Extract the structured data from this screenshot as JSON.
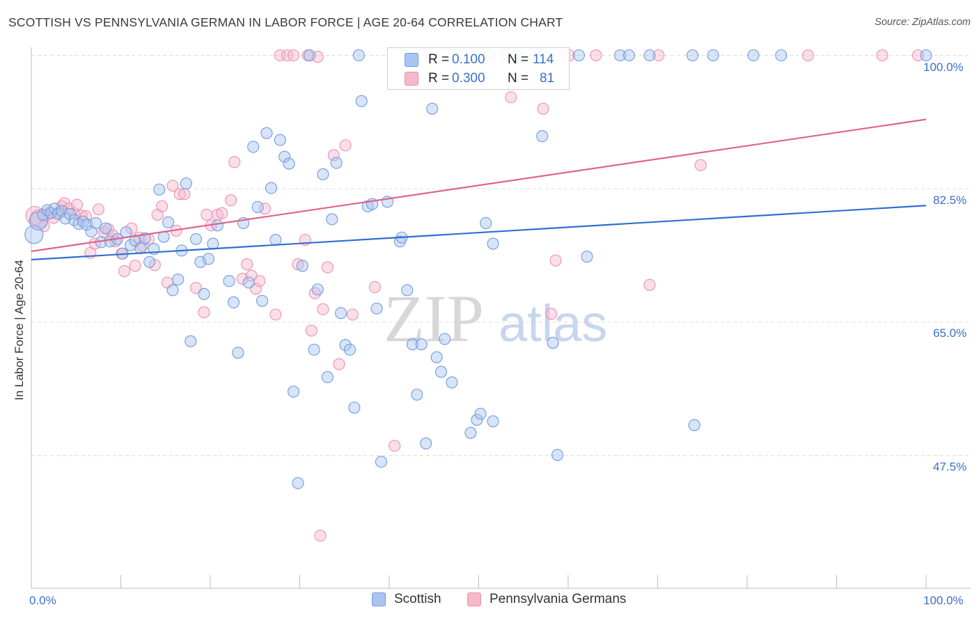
{
  "header": {
    "title": "SCOTTISH VS PENNSYLVANIA GERMAN IN LABOR FORCE | AGE 20-64 CORRELATION CHART",
    "source": "Source: ZipAtlas.com"
  },
  "legend": {
    "rows": [
      {
        "r_label": "R =",
        "r_value": "0.100",
        "n_label": "N =",
        "n_value": "114"
      },
      {
        "r_label": "R =",
        "r_value": "0.300",
        "n_label": "N =",
        "n_value": "81"
      }
    ]
  },
  "bottom_legend": {
    "items": [
      "Scottish",
      "Pennsylvania Germans"
    ]
  },
  "watermark": {
    "zip": "ZIP",
    "atlas": "atlas"
  },
  "axes": {
    "y_title": "In Labor Force | Age 20-64",
    "x_min_label": "0.0%",
    "x_max_label": "100.0%",
    "y_tick_labels": [
      "100.0%",
      "82.5%",
      "65.0%",
      "47.5%"
    ]
  },
  "colors": {
    "blue_fill": "#a9c4ee",
    "blue_stroke": "#6f9be0",
    "blue_line": "#2f6fd1",
    "pink_fill": "#f6b8cb",
    "pink_stroke": "#ec8faf",
    "pink_line": "#e0628d",
    "accent_text": "#3b6fc9"
  },
  "chart_data": {
    "type": "scatter",
    "title": "SCOTTISH VS PENNSYLVANIA GERMAN IN LABOR FORCE | AGE 20-64 CORRELATION CHART",
    "xlabel": "",
    "ylabel": "In Labor Force | Age 20-64",
    "xlim": [
      0,
      100
    ],
    "ylim": [
      29.5,
      101.5
    ],
    "y_ticks": [
      100.0,
      82.5,
      65.0,
      47.5
    ],
    "grid": true,
    "legend_position": "top-center",
    "series": [
      {
        "name": "Scottish",
        "r": 0.1,
        "n": 114,
        "trend": {
          "x": [
            0,
            100
          ],
          "y": [
            73.2,
            80.3
          ]
        },
        "points": [
          [
            0.3,
            76.5
          ],
          [
            0.8,
            78.3
          ],
          [
            1.3,
            79.1
          ],
          [
            1.8,
            79.7
          ],
          [
            2.2,
            79.3
          ],
          [
            2.6,
            79.9
          ],
          [
            3.0,
            79.2
          ],
          [
            3.4,
            79.6
          ],
          [
            3.8,
            78.6
          ],
          [
            4.3,
            79.2
          ],
          [
            4.8,
            78.4
          ],
          [
            5.3,
            77.9
          ],
          [
            5.8,
            78.2
          ],
          [
            6.2,
            77.8
          ],
          [
            6.7,
            76.9
          ],
          [
            7.2,
            78.0
          ],
          [
            7.8,
            75.5
          ],
          [
            8.3,
            77.3
          ],
          [
            8.8,
            75.6
          ],
          [
            9.6,
            75.9
          ],
          [
            10.2,
            74.0
          ],
          [
            10.6,
            76.8
          ],
          [
            11.1,
            75.1
          ],
          [
            11.6,
            75.7
          ],
          [
            12.2,
            74.7
          ],
          [
            12.7,
            76.0
          ],
          [
            13.2,
            72.9
          ],
          [
            13.7,
            74.6
          ],
          [
            14.3,
            82.4
          ],
          [
            14.8,
            76.2
          ],
          [
            15.3,
            78.1
          ],
          [
            15.8,
            69.2
          ],
          [
            16.4,
            70.6
          ],
          [
            16.8,
            74.4
          ],
          [
            17.3,
            83.2
          ],
          [
            17.8,
            62.5
          ],
          [
            18.4,
            75.9
          ],
          [
            18.9,
            72.9
          ],
          [
            19.3,
            68.7
          ],
          [
            19.8,
            73.3
          ],
          [
            20.3,
            75.3
          ],
          [
            20.8,
            77.7
          ],
          [
            22.1,
            70.4
          ],
          [
            22.6,
            67.6
          ],
          [
            23.1,
            61.0
          ],
          [
            23.7,
            78.0
          ],
          [
            24.3,
            70.2
          ],
          [
            24.8,
            88.0
          ],
          [
            25.3,
            80.1
          ],
          [
            25.8,
            67.8
          ],
          [
            26.3,
            89.8
          ],
          [
            26.8,
            82.6
          ],
          [
            27.3,
            75.8
          ],
          [
            27.8,
            88.9
          ],
          [
            28.3,
            86.7
          ],
          [
            28.8,
            85.8
          ],
          [
            29.3,
            55.9
          ],
          [
            29.8,
            43.9
          ],
          [
            30.3,
            72.4
          ],
          [
            31.1,
            100.0
          ],
          [
            31.6,
            61.4
          ],
          [
            32.0,
            69.3
          ],
          [
            32.6,
            84.4
          ],
          [
            33.1,
            57.8
          ],
          [
            33.6,
            78.5
          ],
          [
            34.1,
            85.9
          ],
          [
            34.6,
            66.2
          ],
          [
            35.1,
            62.0
          ],
          [
            35.6,
            61.4
          ],
          [
            36.1,
            53.8
          ],
          [
            36.6,
            100.0
          ],
          [
            36.9,
            94.0
          ],
          [
            37.6,
            80.2
          ],
          [
            38.1,
            80.5
          ],
          [
            38.6,
            66.8
          ],
          [
            39.1,
            46.7
          ],
          [
            39.8,
            80.8
          ],
          [
            41.2,
            75.6
          ],
          [
            41.4,
            76.1
          ],
          [
            42.0,
            69.2
          ],
          [
            42.6,
            62.1
          ],
          [
            43.1,
            55.5
          ],
          [
            43.6,
            62.1
          ],
          [
            44.1,
            49.1
          ],
          [
            44.8,
            93.0
          ],
          [
            45.3,
            60.4
          ],
          [
            45.8,
            58.5
          ],
          [
            46.2,
            62.8
          ],
          [
            47.0,
            57.1
          ],
          [
            49.1,
            50.5
          ],
          [
            49.8,
            52.2
          ],
          [
            50.2,
            53.0
          ],
          [
            51.2,
            100.0
          ],
          [
            51.6,
            52.0
          ],
          [
            50.8,
            78.0
          ],
          [
            51.6,
            75.3
          ],
          [
            54.2,
            100.0
          ],
          [
            57.1,
            89.4
          ],
          [
            57.2,
            100.0
          ],
          [
            58.8,
            47.6
          ],
          [
            58.3,
            62.3
          ],
          [
            61.2,
            100.0
          ],
          [
            62.1,
            73.6
          ],
          [
            65.8,
            100.0
          ],
          [
            66.8,
            100.0
          ],
          [
            69.1,
            100.0
          ],
          [
            73.9,
            100.0
          ],
          [
            74.1,
            51.5
          ],
          [
            76.2,
            100.0
          ],
          [
            80.7,
            100.0
          ],
          [
            83.8,
            100.0
          ],
          [
            100.0,
            100.0
          ]
        ]
      },
      {
        "name": "Pennsylvania Germans",
        "r": 0.3,
        "n": 81,
        "trend": {
          "x": [
            0,
            100
          ],
          "y": [
            74.3,
            91.6
          ]
        },
        "points": [
          [
            0.4,
            79.0
          ],
          [
            0.9,
            78.6
          ],
          [
            1.4,
            77.6
          ],
          [
            2.0,
            79.4
          ],
          [
            2.5,
            78.7
          ],
          [
            3.1,
            79.4
          ],
          [
            3.4,
            80.2
          ],
          [
            3.7,
            80.6
          ],
          [
            4.2,
            79.9
          ],
          [
            4.8,
            79.3
          ],
          [
            5.1,
            80.4
          ],
          [
            5.6,
            79.0
          ],
          [
            6.1,
            78.9
          ],
          [
            6.6,
            74.1
          ],
          [
            7.1,
            75.3
          ],
          [
            7.5,
            79.8
          ],
          [
            8.1,
            76.8
          ],
          [
            8.6,
            77.2
          ],
          [
            9.1,
            76.4
          ],
          [
            9.4,
            75.6
          ],
          [
            10.1,
            74.0
          ],
          [
            10.4,
            71.7
          ],
          [
            11.2,
            77.3
          ],
          [
            11.6,
            72.4
          ],
          [
            12.1,
            76.1
          ],
          [
            12.4,
            75.0
          ],
          [
            13.1,
            75.9
          ],
          [
            13.8,
            72.5
          ],
          [
            14.1,
            79.1
          ],
          [
            14.6,
            80.2
          ],
          [
            15.2,
            70.2
          ],
          [
            15.8,
            82.9
          ],
          [
            16.2,
            77.0
          ],
          [
            16.6,
            81.8
          ],
          [
            17.1,
            81.8
          ],
          [
            18.4,
            69.5
          ],
          [
            19.3,
            66.3
          ],
          [
            19.6,
            79.1
          ],
          [
            20.1,
            77.7
          ],
          [
            20.8,
            79.1
          ],
          [
            21.3,
            79.3
          ],
          [
            22.3,
            81.0
          ],
          [
            22.7,
            86.0
          ],
          [
            23.6,
            70.7
          ],
          [
            24.1,
            72.6
          ],
          [
            24.6,
            71.1
          ],
          [
            25.1,
            69.4
          ],
          [
            25.5,
            70.4
          ],
          [
            26.1,
            79.9
          ],
          [
            27.3,
            66.0
          ],
          [
            27.8,
            100.0
          ],
          [
            28.6,
            100.0
          ],
          [
            29.8,
            72.6
          ],
          [
            29.3,
            100.0
          ],
          [
            30.6,
            75.8
          ],
          [
            30.9,
            100.0
          ],
          [
            31.3,
            63.9
          ],
          [
            31.7,
            68.8
          ],
          [
            32.0,
            99.8
          ],
          [
            32.3,
            37.0
          ],
          [
            32.6,
            66.7
          ],
          [
            33.1,
            72.2
          ],
          [
            33.8,
            86.9
          ],
          [
            34.4,
            59.5
          ],
          [
            35.1,
            88.2
          ],
          [
            35.9,
            66.0
          ],
          [
            38.4,
            69.6
          ],
          [
            40.6,
            48.8
          ],
          [
            53.1,
            100.0
          ],
          [
            53.6,
            94.5
          ],
          [
            57.2,
            93.0
          ],
          [
            58.1,
            66.1
          ],
          [
            58.6,
            73.1
          ],
          [
            60.1,
            100.0
          ],
          [
            63.1,
            100.0
          ],
          [
            69.1,
            69.9
          ],
          [
            70.1,
            100.0
          ],
          [
            74.8,
            85.6
          ],
          [
            86.8,
            100.0
          ],
          [
            95.1,
            100.0
          ],
          [
            99.1,
            100.0
          ]
        ]
      }
    ]
  }
}
